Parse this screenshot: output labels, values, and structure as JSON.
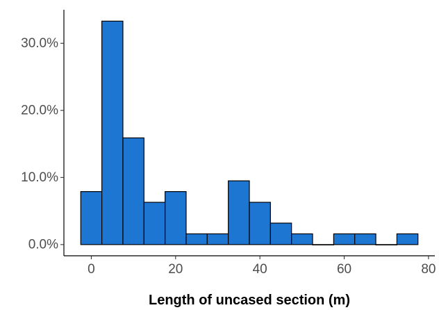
{
  "chart_data": {
    "type": "bar",
    "title": "",
    "xlabel": "Length of uncased section (m)",
    "ylabel": "",
    "bin_width": 5,
    "bins": [
      {
        "x_start": -2.5,
        "x_end": 2.5,
        "value": 0.079
      },
      {
        "x_start": 2.5,
        "x_end": 7.5,
        "value": 0.333
      },
      {
        "x_start": 7.5,
        "x_end": 12.5,
        "value": 0.159
      },
      {
        "x_start": 12.5,
        "x_end": 17.5,
        "value": 0.063
      },
      {
        "x_start": 17.5,
        "x_end": 22.5,
        "value": 0.079
      },
      {
        "x_start": 22.5,
        "x_end": 27.5,
        "value": 0.016
      },
      {
        "x_start": 27.5,
        "x_end": 32.5,
        "value": 0.016
      },
      {
        "x_start": 32.5,
        "x_end": 37.5,
        "value": 0.095
      },
      {
        "x_start": 37.5,
        "x_end": 42.5,
        "value": 0.063
      },
      {
        "x_start": 42.5,
        "x_end": 47.5,
        "value": 0.032
      },
      {
        "x_start": 47.5,
        "x_end": 52.5,
        "value": 0.016
      },
      {
        "x_start": 52.5,
        "x_end": 57.5,
        "value": 0
      },
      {
        "x_start": 57.5,
        "x_end": 62.5,
        "value": 0.016
      },
      {
        "x_start": 62.5,
        "x_end": 67.5,
        "value": 0.016
      },
      {
        "x_start": 67.5,
        "x_end": 72.5,
        "value": 0
      },
      {
        "x_start": 72.5,
        "x_end": 77.5,
        "value": 0.016
      }
    ],
    "xlim": [
      -6.5,
      81.5
    ],
    "ylim": [
      -0.0167,
      0.35
    ],
    "x_ticks": [
      {
        "value": 0,
        "label": "0"
      },
      {
        "value": 20,
        "label": "20"
      },
      {
        "value": 40,
        "label": "40"
      },
      {
        "value": 60,
        "label": "60"
      },
      {
        "value": 80,
        "label": "80"
      }
    ],
    "y_ticks": [
      {
        "value": 0.0,
        "label": "0.0%"
      },
      {
        "value": 0.1,
        "label": "10.0%"
      },
      {
        "value": 0.2,
        "label": "20.0%"
      },
      {
        "value": 0.3,
        "label": "30.0%"
      }
    ],
    "grid": false,
    "legend": "none",
    "colors": {
      "bar_fill": "#1e76d3",
      "bar_stroke": "#000000",
      "axis_line": "#000000",
      "tick_label": "#4d4d4d"
    }
  }
}
